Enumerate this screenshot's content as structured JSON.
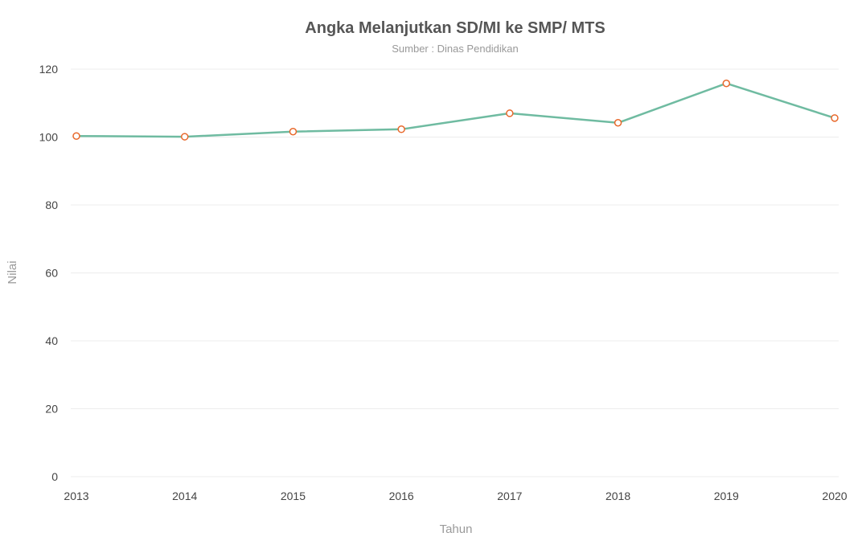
{
  "colors": {
    "line": "#6fbba1",
    "marker_stroke": "#e8692c",
    "marker_fill": "#ffffff",
    "grid": "#ececec",
    "title": "#555555",
    "subtitle": "#999999"
  },
  "chart_data": {
    "type": "line",
    "title": "Angka Melanjutkan SD/MI ke SMP/ MTS",
    "subtitle": "Sumber : Dinas Pendidikan",
    "xlabel": "Tahun",
    "ylabel": "Nilai",
    "x": [
      "2013",
      "2014",
      "2015",
      "2016",
      "2017",
      "2018",
      "2019",
      "2020"
    ],
    "series": [
      {
        "values": [
          100.3,
          100.1,
          101.6,
          102.3,
          107.0,
          104.2,
          115.8,
          105.6
        ]
      }
    ],
    "ylim": [
      0,
      120
    ],
    "yticks": [
      0,
      20,
      40,
      60,
      80,
      100,
      120
    ],
    "grid": true,
    "legend": "none"
  }
}
